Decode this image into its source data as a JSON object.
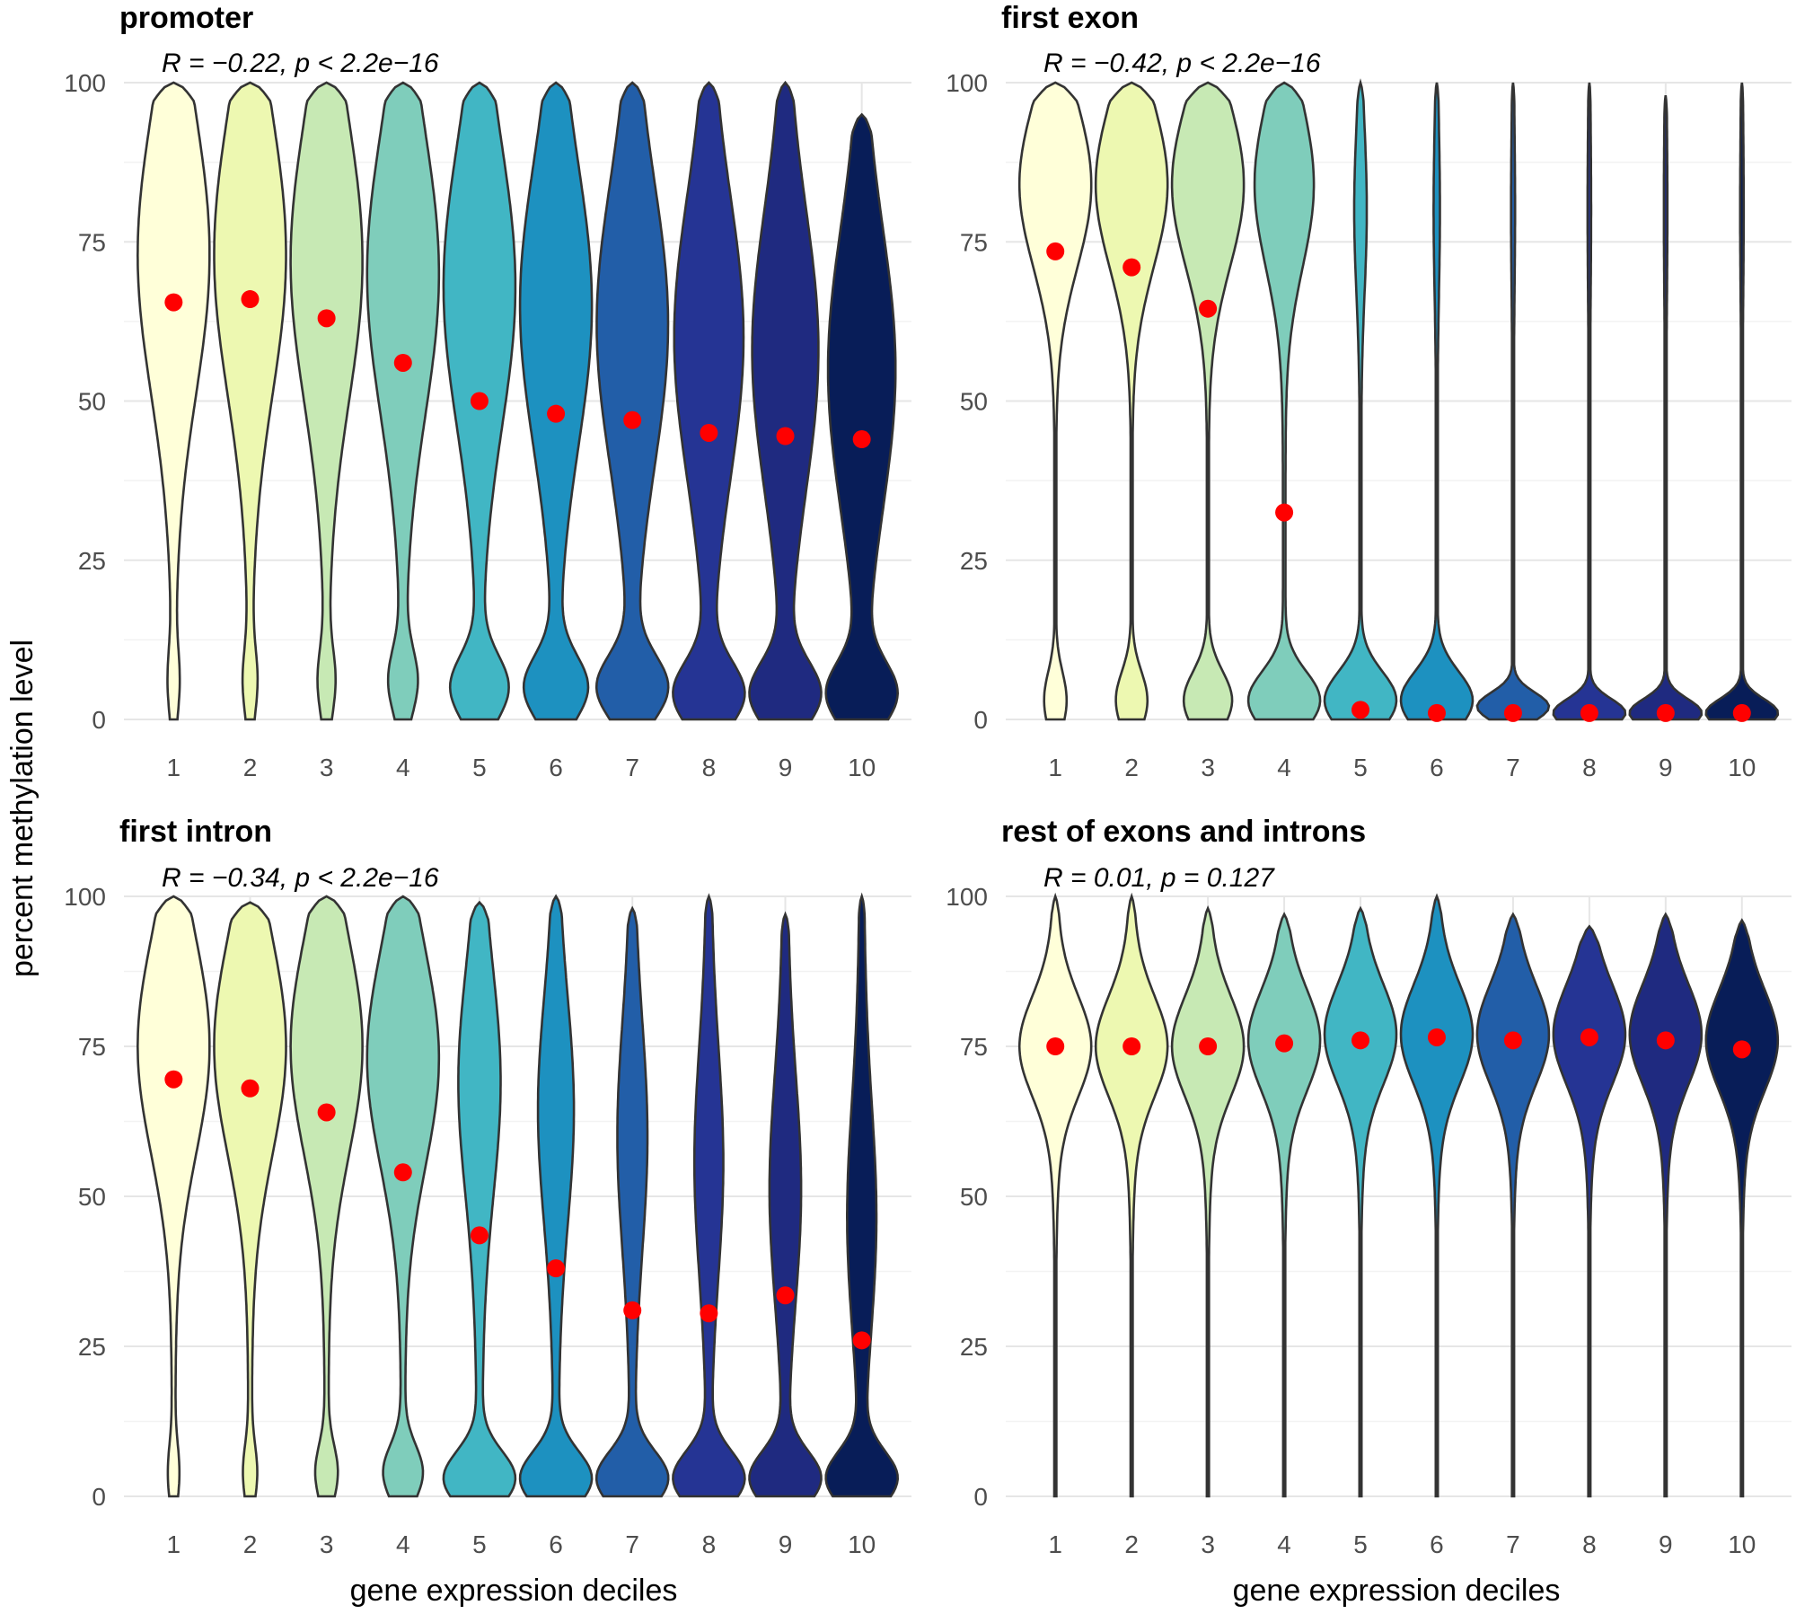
{
  "chart_data": {
    "type": "violin",
    "ylabel": "percent methylation level",
    "xlabel": "gene expression deciles",
    "ylim": [
      0,
      100
    ],
    "yticks": [
      0,
      25,
      50,
      75,
      100
    ],
    "categories": [
      "1",
      "2",
      "3",
      "4",
      "5",
      "6",
      "7",
      "8",
      "9",
      "10"
    ],
    "fill_colors": [
      "#ffffd9",
      "#edf8b1",
      "#c7e9b4",
      "#7fcdbb",
      "#41b6c4",
      "#1d91c0",
      "#225ea8",
      "#253494",
      "#1f2a80",
      "#081d58"
    ],
    "mean_color": "#ff0000",
    "grid": true,
    "panels": [
      {
        "title": "promoter",
        "annotation": "R = −0.22, p < 2.2e−16",
        "means": [
          65.5,
          66,
          63,
          56,
          50,
          48,
          47,
          45,
          44.5,
          44
        ],
        "ymax": [
          100,
          100,
          100,
          100,
          100,
          100,
          100,
          100,
          100,
          95
        ],
        "upper_mode": [
          73,
          73,
          72,
          70,
          68,
          65,
          62,
          60,
          58,
          55
        ],
        "lower_mode": [
          6,
          6,
          6,
          6,
          5,
          5,
          5,
          4,
          4,
          4
        ],
        "upper_scale": [
          1.0,
          0.95,
          0.9,
          0.82,
          0.76,
          0.75,
          0.72,
          0.75,
          0.75,
          0.8
        ],
        "lower_scale": [
          0.12,
          0.15,
          0.18,
          0.3,
          0.6,
          0.65,
          0.7,
          0.75,
          0.78,
          0.8
        ],
        "shape": "promoter"
      },
      {
        "title": "first exon",
        "annotation": "R = −0.42, p < 2.2e−16",
        "means": [
          73.5,
          71,
          64.5,
          32.5,
          1.5,
          1,
          1,
          1,
          1,
          1
        ],
        "ymax": [
          100,
          100,
          100,
          100,
          100,
          100,
          100,
          100,
          98,
          100
        ],
        "upper_mode": [
          84,
          84,
          84,
          84,
          80,
          80,
          80,
          80,
          80,
          80
        ],
        "lower_mode": [
          3,
          3,
          3,
          3,
          3,
          3,
          2,
          1,
          1,
          1
        ],
        "upper_scale": [
          1.0,
          0.98,
          0.9,
          0.45,
          0.15,
          0.07,
          0.04,
          0.03,
          0.03,
          0.03
        ],
        "lower_scale": [
          0.3,
          0.42,
          0.6,
          0.55,
          0.95,
          1.0,
          1.05,
          1.0,
          1.0,
          1.0
        ],
        "shape": "exon"
      },
      {
        "title": "first intron",
        "annotation": "R = −0.34, p < 2.2e−16",
        "means": [
          69.5,
          68,
          64,
          54,
          43.5,
          38,
          31,
          30.5,
          33.5,
          26
        ],
        "ymax": [
          100,
          99,
          100,
          100,
          99,
          100,
          98,
          100,
          97,
          100
        ],
        "upper_mode": [
          75,
          75,
          75,
          73,
          70,
          65,
          60,
          55,
          50,
          45
        ],
        "lower_mode": [
          4,
          4,
          4,
          4,
          3,
          3,
          3,
          3,
          3,
          3
        ],
        "upper_scale": [
          1.0,
          0.95,
          0.9,
          0.85,
          0.35,
          0.3,
          0.25,
          0.25,
          0.3,
          0.3
        ],
        "lower_scale": [
          0.12,
          0.15,
          0.25,
          0.45,
          0.75,
          0.8,
          0.85,
          0.88,
          0.9,
          0.95
        ],
        "shape": "intron"
      },
      {
        "title": "rest of exons and introns",
        "annotation": "R = 0.01, p = 0.127",
        "means": [
          75,
          75,
          75,
          75.5,
          76,
          76.5,
          76,
          76.5,
          76,
          74.5
        ],
        "ymax": [
          100,
          100,
          98,
          97,
          98,
          100,
          97,
          95,
          97,
          96
        ],
        "upper_mode": [
          75,
          75,
          75,
          76,
          77,
          77,
          77,
          77,
          77,
          76
        ],
        "lower_mode": [
          1,
          1,
          1,
          1,
          1,
          1,
          1,
          1,
          1,
          1
        ],
        "upper_scale": [
          0.5,
          0.5,
          0.55,
          0.6,
          0.75,
          0.8,
          0.85,
          0.88,
          0.9,
          0.95
        ],
        "lower_scale": [
          0.02,
          0.02,
          0.02,
          0.02,
          0.02,
          0.02,
          0.02,
          0.02,
          0.02,
          0.02
        ],
        "shape": "rest"
      }
    ]
  }
}
